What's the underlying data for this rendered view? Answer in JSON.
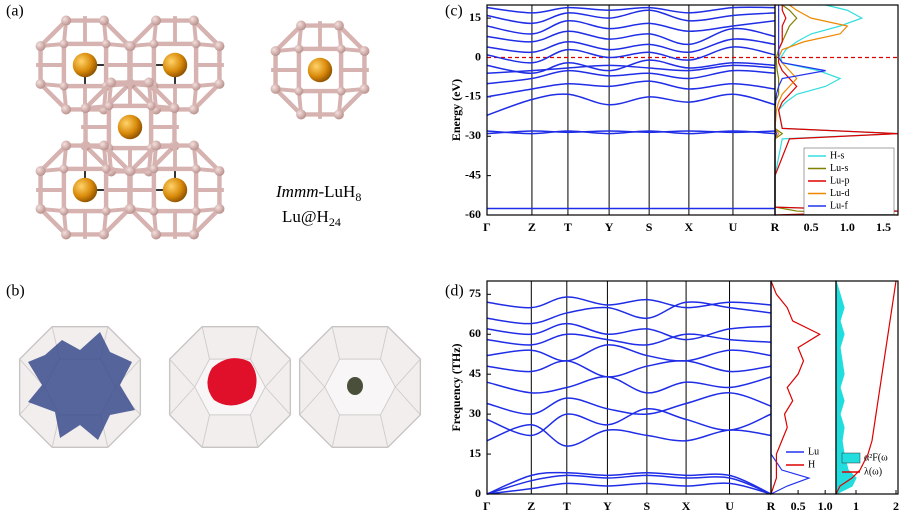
{
  "panel_labels": [
    "(a)",
    "(b)",
    "(c)",
    "(d)"
  ],
  "structure": {
    "name": "Immm",
    "formula": "-LuH",
    "formula_sub": "8",
    "cage": "Lu@H",
    "cage_sub": "24"
  },
  "chart_data": [
    {
      "type": "band",
      "ylabel": "Energy (eV)",
      "categories": [
        "Γ",
        "Z",
        "T",
        "Y",
        "S",
        "X",
        "U",
        "R"
      ],
      "ylim": [
        -60,
        20
      ],
      "yticks": [
        15,
        0,
        -15,
        -30,
        -45,
        -60
      ],
      "fermi_level": 0,
      "series": [
        {
          "values": [
            -57.5,
            -57.5,
            -57.5,
            -57.5,
            -57.5,
            -57.5,
            -57.5,
            -57.5
          ]
        },
        {
          "values": [
            -29,
            -28,
            -28.5,
            -28,
            -28.5,
            -28,
            -28.5,
            -28
          ]
        },
        {
          "values": [
            -28,
            -29,
            -28,
            -29,
            -28,
            -29,
            -28,
            -29
          ]
        },
        {
          "values": [
            -22,
            -16,
            -14,
            -18,
            -15,
            -17,
            -14,
            -18
          ]
        },
        {
          "values": [
            -15,
            -12,
            -10,
            -11,
            -9,
            -12,
            -10,
            -12
          ]
        },
        {
          "values": [
            -10,
            -8,
            -5,
            -7,
            -6,
            -8,
            -5,
            -6
          ]
        },
        {
          "values": [
            -6,
            -5,
            -4,
            -3,
            -4,
            -5,
            -3,
            -4
          ]
        },
        {
          "values": [
            -3,
            -6,
            -2,
            -5,
            -1,
            -4,
            -2,
            -3
          ]
        },
        {
          "values": [
            1,
            -2,
            3,
            0,
            2,
            -1,
            4,
            1
          ]
        },
        {
          "values": [
            4,
            2,
            6,
            3,
            5,
            2,
            7,
            5
          ]
        },
        {
          "values": [
            8,
            6,
            10,
            7,
            9,
            5,
            11,
            8
          ]
        },
        {
          "values": [
            12,
            9,
            14,
            11,
            13,
            10,
            12,
            14
          ]
        },
        {
          "values": [
            16,
            13,
            17,
            15,
            18,
            14,
            16,
            17
          ]
        },
        {
          "values": [
            19,
            17,
            19,
            18,
            19,
            17,
            19,
            19
          ]
        }
      ],
      "dos_panels": [
        {
          "xlim": [
            0,
            1.7
          ],
          "xticks": [
            0.5,
            {
              "value": 1,
              "label": "1.0"
            },
            1.5
          ],
          "y": [
            -60,
            -58.5,
            -57,
            -45,
            -31,
            -29,
            -27,
            -20,
            -17,
            -14,
            -11,
            -8,
            -5,
            -2,
            0,
            3,
            6,
            9,
            12,
            15,
            18,
            20
          ],
          "series": [
            {
              "name": "H-s",
              "color": "#33dddd",
              "values": [
                1.2,
                1.7,
                0,
                0,
                0.1,
                1.7,
                0.1,
                0.05,
                0.15,
                0.3,
                0.7,
                0.9,
                0.6,
                0.1,
                0.08,
                0.15,
                0.3,
                0.5,
                0.9,
                1.2,
                1.0,
                0.7
              ]
            },
            {
              "name": "Lu-s",
              "color": "#808000",
              "values": [
                1.7,
                0.3,
                0,
                0,
                0,
                0.1,
                0,
                0,
                0,
                0.05,
                0.05,
                0.05,
                0.03,
                0.02,
                0.02,
                0.05,
                0.1,
                0.15,
                0.2,
                0.3,
                0.2,
                0.1
              ]
            },
            {
              "name": "Lu-p",
              "color": "#dd0000",
              "values": [
                0,
                1.7,
                0,
                0,
                0.2,
                1.7,
                0.1,
                0.05,
                0.1,
                0.2,
                0.3,
                0.2,
                0.1,
                0.05,
                0.05,
                0.05,
                0.1,
                0.1,
                0.1,
                0.15,
                0.1,
                0.1
              ]
            },
            {
              "name": "Lu-d",
              "color": "#ee8800",
              "values": [
                0,
                0,
                0,
                0,
                0,
                0.05,
                0,
                0.02,
                0.05,
                0.1,
                0.2,
                0.3,
                0.2,
                0.1,
                0.05,
                0.1,
                0.4,
                0.9,
                1.0,
                0.5,
                0.3,
                0.2
              ]
            },
            {
              "name": "Lu-f",
              "color": "#2233ee",
              "values": [
                0,
                0,
                0,
                0,
                0,
                0.02,
                0,
                0,
                0.01,
                0.02,
                0.05,
                0.1,
                0.7,
                0.1,
                0.05,
                0.05,
                0.05,
                0.05,
                0.05,
                0.05,
                0.05,
                0.05
              ]
            }
          ]
        }
      ]
    },
    {
      "type": "band",
      "ylabel": "Frequency (THz)",
      "categories": [
        "Γ",
        "Z",
        "T",
        "Y",
        "S",
        "X",
        "U",
        "R"
      ],
      "ylim": [
        0,
        80
      ],
      "yticks": [
        0,
        15,
        30,
        45,
        60,
        75
      ],
      "series": [
        {
          "values": [
            0,
            2,
            4,
            3,
            4,
            3,
            4,
            0
          ]
        },
        {
          "values": [
            0,
            5,
            7,
            6,
            7,
            6,
            6,
            0
          ]
        },
        {
          "values": [
            0,
            7,
            8,
            7,
            8,
            7,
            7,
            0
          ]
        },
        {
          "values": [
            20,
            26,
            18,
            24,
            22,
            20,
            24,
            22
          ]
        },
        {
          "values": [
            28,
            22,
            30,
            26,
            32,
            28,
            24,
            30
          ]
        },
        {
          "values": [
            34,
            30,
            36,
            32,
            30,
            34,
            38,
            33
          ]
        },
        {
          "values": [
            42,
            38,
            40,
            44,
            38,
            42,
            40,
            44
          ]
        },
        {
          "values": [
            48,
            46,
            50,
            44,
            48,
            50,
            46,
            48
          ]
        },
        {
          "values": [
            52,
            54,
            50,
            56,
            52,
            50,
            54,
            52
          ]
        },
        {
          "values": [
            58,
            56,
            60,
            58,
            56,
            60,
            58,
            57
          ]
        },
        {
          "values": [
            62,
            60,
            64,
            60,
            62,
            58,
            62,
            63
          ]
        },
        {
          "values": [
            66,
            64,
            68,
            70,
            66,
            72,
            70,
            68
          ]
        },
        {
          "values": [
            72,
            70,
            74,
            71,
            73,
            70,
            72,
            71
          ]
        }
      ],
      "dos_panels": [
        {
          "xlim": [
            0,
            1.2
          ],
          "xticks": [
            0.5,
            {
              "value": 1,
              "label": "1.0"
            }
          ],
          "y": [
            0,
            3,
            6,
            9,
            15,
            20,
            25,
            30,
            35,
            40,
            45,
            50,
            55,
            60,
            65,
            70,
            75,
            80
          ],
          "series": [
            {
              "name": "Lu",
              "color": "#2233ee",
              "values": [
                0,
                0.3,
                0.7,
                0.2,
                0,
                0,
                0,
                0,
                0,
                0,
                0,
                0,
                0,
                0,
                0,
                0,
                0,
                0
              ]
            },
            {
              "name": "H",
              "color": "#dd0000",
              "values": [
                0,
                0.05,
                0.1,
                0.1,
                0.1,
                0.2,
                0.3,
                0.25,
                0.4,
                0.3,
                0.5,
                0.6,
                0.5,
                0.9,
                0.4,
                0.3,
                0.1,
                0
              ]
            }
          ]
        },
        {
          "xlim": [
            0.5,
            2.05
          ],
          "xticks": [
            1,
            2
          ],
          "y": [
            0,
            3,
            6,
            9,
            15,
            20,
            25,
            30,
            35,
            40,
            45,
            50,
            55,
            60,
            65,
            70,
            75,
            80
          ],
          "series": [
            {
              "name": "α²F(ω",
              "color": "#22dddd",
              "fill": true,
              "values": [
                0.5,
                0.9,
                1.0,
                0.8,
                0.7,
                0.65,
                0.7,
                0.6,
                0.7,
                0.6,
                0.7,
                0.65,
                0.6,
                0.7,
                0.6,
                0.7,
                0.6,
                0.5
              ]
            },
            {
              "name": "λ(ω)",
              "color": "#dd0000",
              "values": [
                0.5,
                0.6,
                0.9,
                1.1,
                1.3,
                1.4,
                1.45,
                1.5,
                1.55,
                1.6,
                1.65,
                1.7,
                1.75,
                1.8,
                1.85,
                1.9,
                1.95,
                2.0
              ]
            }
          ]
        }
      ]
    }
  ]
}
